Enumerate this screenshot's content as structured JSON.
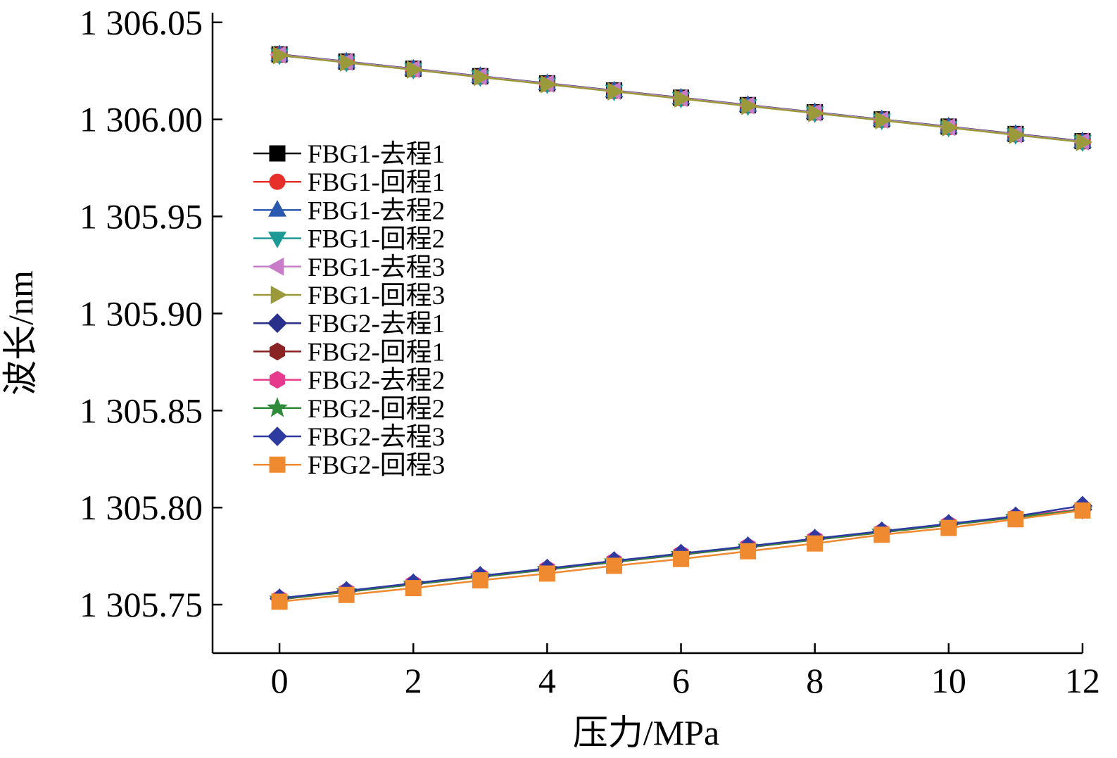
{
  "chart_data": {
    "type": "line",
    "title": "",
    "xlabel": "压力/MPa",
    "ylabel": "波长/nm",
    "xlim": [
      -1,
      12
    ],
    "ylim": [
      1305.725,
      1306.055
    ],
    "xticks": [
      0,
      2,
      4,
      6,
      8,
      10,
      12
    ],
    "xtick_labels": [
      "0",
      "2",
      "4",
      "6",
      "8",
      "10",
      "12"
    ],
    "yticks": [
      1305.75,
      1305.8,
      1305.85,
      1305.9,
      1305.95,
      1306.0,
      1306.05
    ],
    "ytick_labels": [
      "1 305.75",
      "1 305.80",
      "1 305.85",
      "1 305.90",
      "1 305.95",
      "1 306.00",
      "1 306.05"
    ],
    "legend_position": "upper-left",
    "x": [
      0,
      1,
      2,
      3,
      4,
      5,
      6,
      7,
      8,
      9,
      10,
      11,
      12
    ],
    "series": [
      {
        "name": "FBG1-去程1",
        "color": "#000000",
        "marker": "square",
        "values": [
          1306.0335,
          1306.0298,
          1306.0261,
          1306.0223,
          1306.0186,
          1306.0149,
          1306.0112,
          1306.0074,
          1306.0037,
          1306.0,
          1305.9963,
          1305.9925,
          1305.9888
        ]
      },
      {
        "name": "FBG1-回程1",
        "color": "#e8302a",
        "marker": "circle",
        "values": [
          1306.0332,
          1306.0295,
          1306.0258,
          1306.022,
          1306.0183,
          1306.0146,
          1306.0109,
          1306.0071,
          1306.0034,
          1305.9997,
          1305.996,
          1305.9922,
          1305.9885
        ]
      },
      {
        "name": "FBG1-去程2",
        "color": "#2a5ab0",
        "marker": "triangle-up",
        "values": [
          1306.0334,
          1306.0297,
          1306.026,
          1306.0222,
          1306.0185,
          1306.0148,
          1306.0111,
          1306.0073,
          1306.0036,
          1305.9999,
          1305.9962,
          1305.9924,
          1305.9887
        ]
      },
      {
        "name": "FBG1-回程2",
        "color": "#1e9a96",
        "marker": "triangle-down",
        "values": [
          1306.0331,
          1306.0294,
          1306.0257,
          1306.0219,
          1306.0182,
          1306.0145,
          1306.0108,
          1306.007,
          1306.0033,
          1305.9996,
          1305.9959,
          1305.9921,
          1305.9884
        ]
      },
      {
        "name": "FBG1-去程3",
        "color": "#c77dc7",
        "marker": "triangle-left",
        "values": [
          1306.0333,
          1306.0296,
          1306.0259,
          1306.0221,
          1306.0184,
          1306.0147,
          1306.011,
          1306.0072,
          1306.0035,
          1305.9998,
          1305.9961,
          1305.9923,
          1305.9886
        ]
      },
      {
        "name": "FBG1-回程3",
        "color": "#9a9a3a",
        "marker": "triangle-right",
        "values": [
          1306.033,
          1306.0293,
          1306.0256,
          1306.0218,
          1306.0181,
          1306.0144,
          1306.0107,
          1306.0069,
          1306.0032,
          1305.9995,
          1305.9958,
          1305.992,
          1305.9883
        ]
      },
      {
        "name": "FBG2-去程1",
        "color": "#28308c",
        "marker": "diamond",
        "values": [
          1305.753,
          1305.7568,
          1305.7607,
          1305.7645,
          1305.7683,
          1305.7722,
          1305.776,
          1305.7798,
          1305.7837,
          1305.7875,
          1305.7913,
          1305.7952,
          1305.799
        ]
      },
      {
        "name": "FBG2-回程1",
        "color": "#8a2323",
        "marker": "hexagon",
        "values": [
          1305.7527,
          1305.7565,
          1305.7604,
          1305.7642,
          1305.768,
          1305.7719,
          1305.7757,
          1305.7795,
          1305.7834,
          1305.7872,
          1305.791,
          1305.7949,
          1305.7987
        ]
      },
      {
        "name": "FBG2-去程2",
        "color": "#e83a8c",
        "marker": "hexagon",
        "values": [
          1305.7532,
          1305.757,
          1305.7609,
          1305.7647,
          1305.7685,
          1305.7724,
          1305.7762,
          1305.78,
          1305.7839,
          1305.7877,
          1305.7915,
          1305.7954,
          1305.7992
        ]
      },
      {
        "name": "FBG2-回程2",
        "color": "#2e8b3a",
        "marker": "star",
        "values": [
          1305.7528,
          1305.7566,
          1305.7605,
          1305.7643,
          1305.7681,
          1305.772,
          1305.7758,
          1305.7796,
          1305.7835,
          1305.7873,
          1305.7911,
          1305.795,
          1305.7988
        ]
      },
      {
        "name": "FBG2-去程3",
        "color": "#2e3aa0",
        "marker": "diamond",
        "values": [
          1305.7533,
          1305.7571,
          1305.761,
          1305.7648,
          1305.7686,
          1305.7725,
          1305.7763,
          1305.7801,
          1305.784,
          1305.7878,
          1305.7916,
          1305.7955,
          1305.801
        ]
      },
      {
        "name": "FBG2-回程3",
        "color": "#f08a30",
        "marker": "square",
        "values": [
          1305.7515,
          1305.755,
          1305.7585,
          1305.7625,
          1305.766,
          1305.77,
          1305.7735,
          1305.7775,
          1305.7815,
          1305.786,
          1305.7895,
          1305.794,
          1305.7985
        ]
      }
    ]
  }
}
